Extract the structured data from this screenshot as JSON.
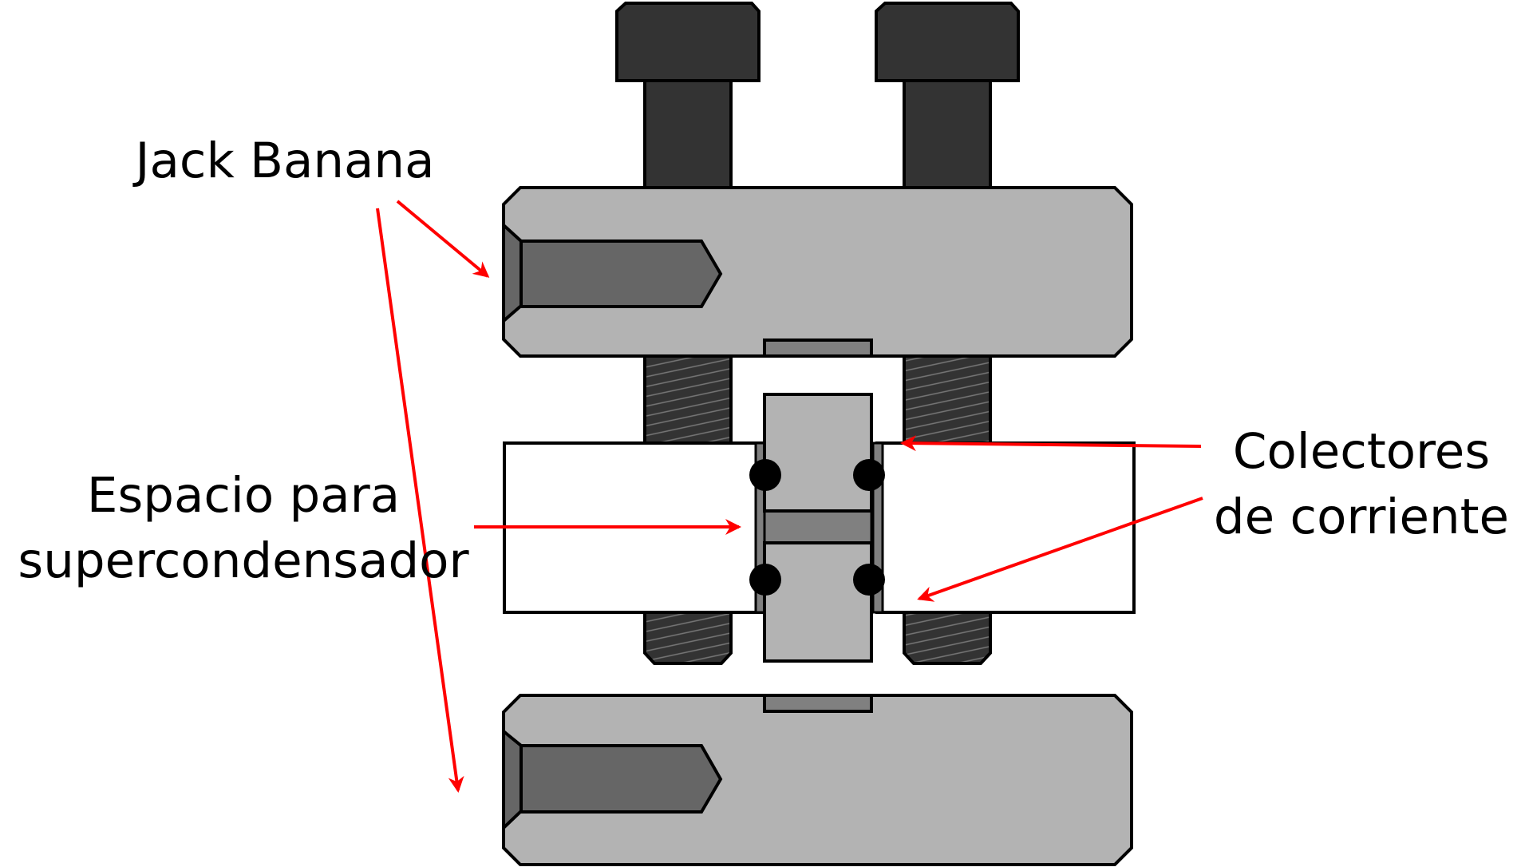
{
  "labels": {
    "jack_banana": "Jack Banana",
    "espacio_line1": "Espacio para",
    "espacio_line2": "supercondensador",
    "colectores_line1": "Colectores",
    "colectores_line2": "de corriente"
  },
  "colors": {
    "arrow": "#ff0000",
    "outline": "#000000",
    "plate": "#b3b3b3",
    "bolt": "#333333",
    "jack": "#666666",
    "spacer": "#808080",
    "background": "#ffffff"
  }
}
